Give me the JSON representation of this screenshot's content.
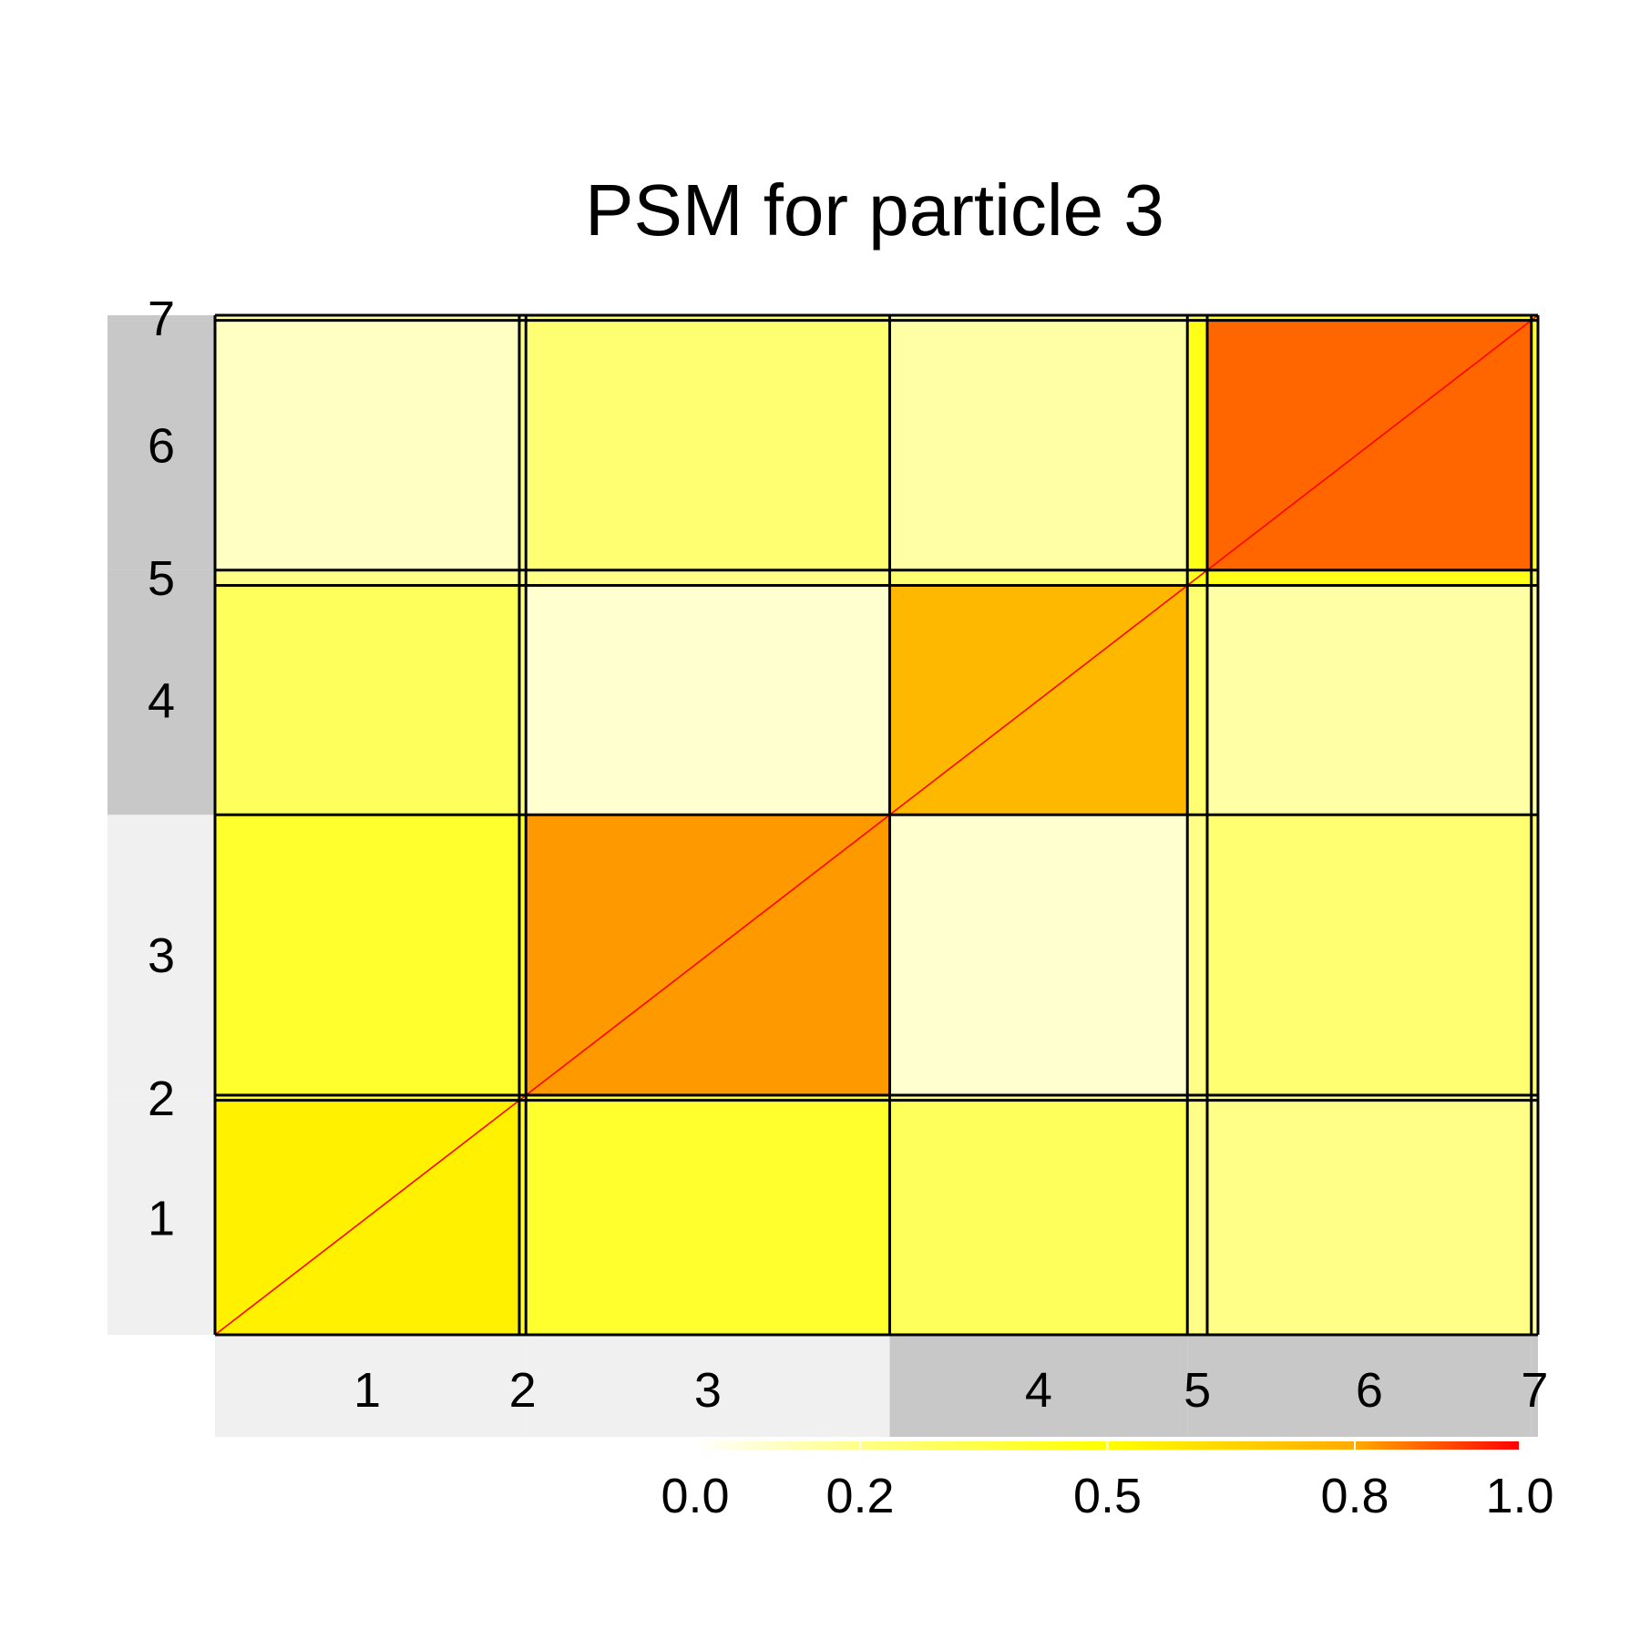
{
  "chart_data": {
    "type": "heatmap",
    "title": "PSM for particle 3",
    "clusters": [
      "1",
      "2",
      "3",
      "4",
      "5",
      "6",
      "7"
    ],
    "cluster_fractions": [
      0.23,
      0.005,
      0.275,
      0.225,
      0.015,
      0.245,
      0.005
    ],
    "block_values": [
      [
        0.55,
        0.4,
        0.4,
        0.3,
        0.2,
        0.2,
        0.15
      ],
      [
        0.4,
        0.5,
        0.4,
        0.2,
        0.2,
        0.2,
        0.15
      ],
      [
        0.4,
        0.4,
        0.82,
        0.08,
        0.2,
        0.25,
        0.25
      ],
      [
        0.3,
        0.2,
        0.08,
        0.75,
        0.25,
        0.15,
        0.15
      ],
      [
        0.2,
        0.2,
        0.2,
        0.25,
        0.45,
        0.45,
        0.3
      ],
      [
        0.1,
        0.2,
        0.25,
        0.15,
        0.45,
        0.88,
        0.4
      ],
      [
        0.15,
        0.15,
        0.25,
        0.15,
        0.3,
        0.4,
        0.5
      ]
    ],
    "diagonal_value": 1.0,
    "color_scale": {
      "ticks": [
        "0.0",
        "0.2",
        "0.5",
        "0.8",
        "1.0"
      ],
      "tick_values": [
        0.0,
        0.2,
        0.5,
        0.8,
        1.0
      ],
      "colors": [
        "#ffffff",
        "#ffff88",
        "#ffff00",
        "#ffaa00",
        "#ff0000"
      ]
    },
    "band_colors": [
      "#f0f0f0",
      "#c8c8c8"
    ],
    "grid_line_color": "#000000"
  }
}
